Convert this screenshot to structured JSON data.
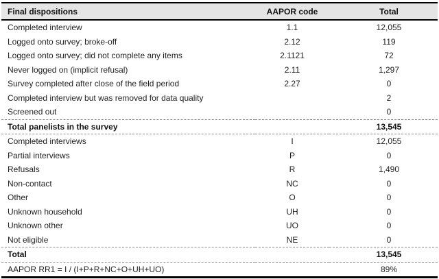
{
  "table": {
    "columns": [
      "Final dispositions",
      "AAPOR code",
      "Total"
    ],
    "rows": [
      {
        "label": "Completed interview",
        "code": "1.1",
        "total": "12,055",
        "bold": false,
        "rule_above": false,
        "rule_below": false
      },
      {
        "label": "Logged onto survey; broke-off",
        "code": "2.12",
        "total": "119",
        "bold": false,
        "rule_above": false,
        "rule_below": false
      },
      {
        "label": "Logged onto survey; did not complete any items",
        "code": "2.1121",
        "total": "72",
        "bold": false,
        "rule_above": false,
        "rule_below": false
      },
      {
        "label": "Never logged on (implicit refusal)",
        "code": "2.11",
        "total": "1,297",
        "bold": false,
        "rule_above": false,
        "rule_below": false
      },
      {
        "label": "Survey completed after close of the field period",
        "code": "2.27",
        "total": "0",
        "bold": false,
        "rule_above": false,
        "rule_below": false
      },
      {
        "label": "Completed interview but was removed for data quality",
        "code": "",
        "total": "2",
        "bold": false,
        "rule_above": false,
        "rule_below": false
      },
      {
        "label": "Screened out",
        "code": "",
        "total": "0",
        "bold": false,
        "rule_above": false,
        "rule_below": false
      },
      {
        "label": "Total panelists in the survey",
        "code": "",
        "total": "13,545",
        "bold": true,
        "rule_above": true,
        "rule_below": true
      },
      {
        "label": "Completed interviews",
        "code": "I",
        "total": "12,055",
        "bold": false,
        "rule_above": false,
        "rule_below": false
      },
      {
        "label": "Partial interviews",
        "code": "P",
        "total": "0",
        "bold": false,
        "rule_above": false,
        "rule_below": false
      },
      {
        "label": "Refusals",
        "code": "R",
        "total": "1,490",
        "bold": false,
        "rule_above": false,
        "rule_below": false
      },
      {
        "label": "Non-contact",
        "code": "NC",
        "total": "0",
        "bold": false,
        "rule_above": false,
        "rule_below": false
      },
      {
        "label": "Other",
        "code": "O",
        "total": "0",
        "bold": false,
        "rule_above": false,
        "rule_below": false
      },
      {
        "label": "Unknown household",
        "code": "UH",
        "total": "0",
        "bold": false,
        "rule_above": false,
        "rule_below": false
      },
      {
        "label": "Unknown other",
        "code": "UO",
        "total": "0",
        "bold": false,
        "rule_above": false,
        "rule_below": false
      },
      {
        "label": "Not eligible",
        "code": "NE",
        "total": "0",
        "bold": false,
        "rule_above": false,
        "rule_below": false
      },
      {
        "label": "Total",
        "code": "",
        "total": "13,545",
        "bold": true,
        "rule_above": true,
        "rule_below": true
      },
      {
        "label": "AAPOR RR1 = I / (I+P+R+NC+O+UH+UO)",
        "code": "",
        "total": "89%",
        "bold": false,
        "rule_above": false,
        "rule_below": false
      }
    ]
  },
  "colors": {
    "header_background": "#e5e5e5",
    "strong_rule": "#000000",
    "light_rule": "#8a8a8a",
    "text": "#1f1f1f"
  }
}
